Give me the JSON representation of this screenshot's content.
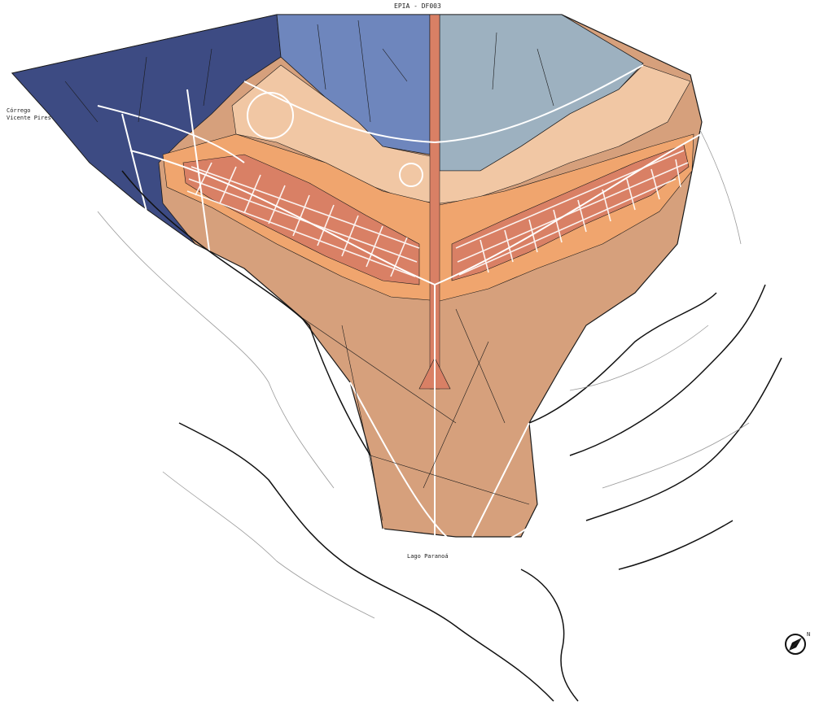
{
  "map": {
    "labels": {
      "top_road": "EPIA - DF003",
      "stream_line1": "Córrego",
      "stream_line2": "Vicente Pires",
      "lake": "Lago Paranoá",
      "north": "N"
    },
    "colors": {
      "zone_navy": "#3d4b83",
      "zone_blue": "#6e86bd",
      "zone_grey_blue": "#9db1c0",
      "zone_peach_light": "#f1c7a4",
      "zone_orange": "#f0a56e",
      "zone_brown": "#d6a07c",
      "zone_red": "#d98065",
      "road_white": "#ffffff",
      "line_dark": "#1a1a1a"
    },
    "icons": [
      "north-arrow-icon"
    ]
  }
}
